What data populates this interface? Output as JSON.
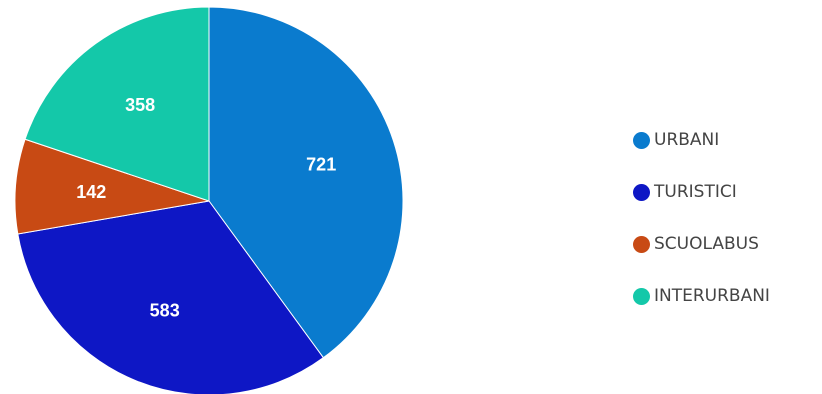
{
  "chart_data": {
    "type": "pie",
    "categories": [
      "URBANI",
      "TURISTICI",
      "SCUOLABUS",
      "INTERURBANI"
    ],
    "values": [
      721,
      583,
      142,
      358
    ],
    "colors": [
      "#0a7bce",
      "#0e17c5",
      "#c84a14",
      "#14c8a9"
    ],
    "title": "",
    "legend_position": "right"
  }
}
